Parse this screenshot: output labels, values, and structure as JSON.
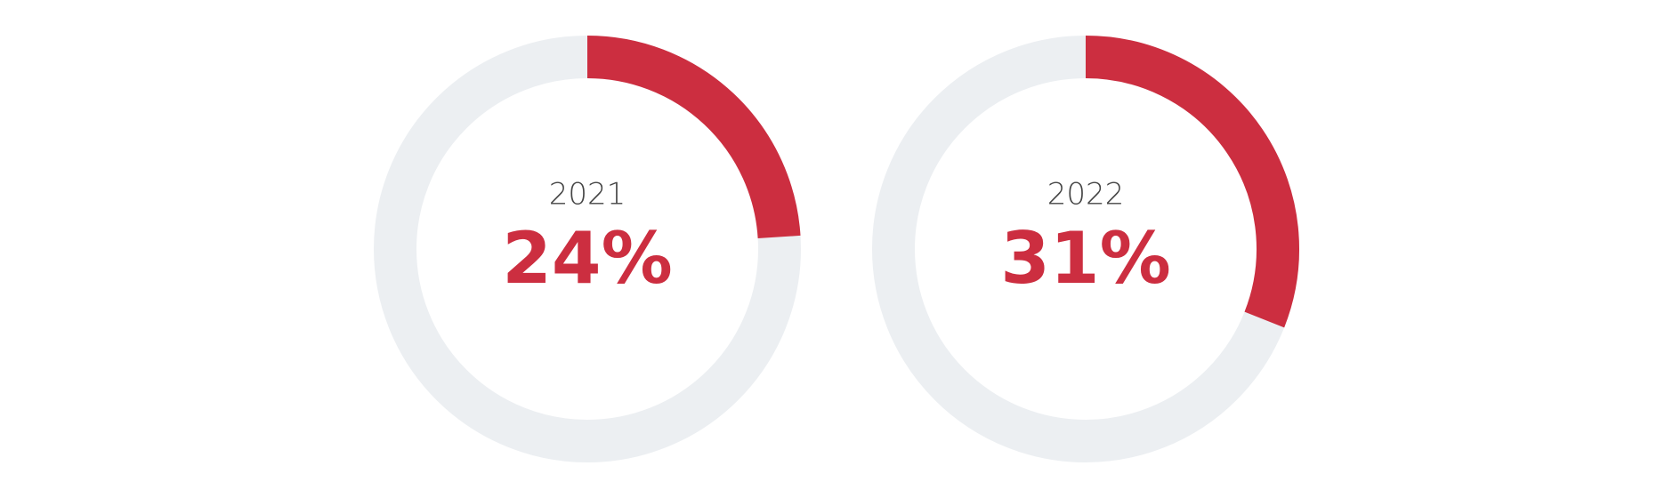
{
  "chart_data": [
    {
      "type": "donut",
      "title": "2021",
      "values": [
        24
      ],
      "value_labels": [
        "24%"
      ],
      "color": "#cc2e40",
      "track_color": "#eceff2"
    },
    {
      "type": "donut",
      "title": "2022",
      "values": [
        31
      ],
      "value_labels": [
        "31%"
      ],
      "color": "#cc2e40",
      "track_color": "#eceff2"
    }
  ]
}
